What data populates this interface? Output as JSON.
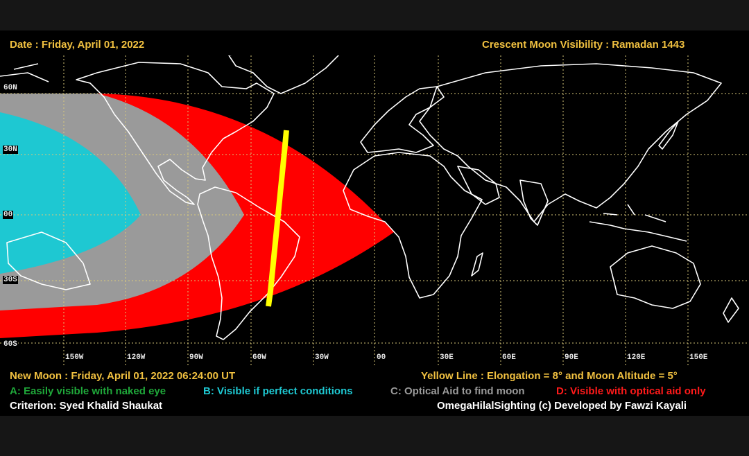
{
  "header": {
    "date": "Date : Friday, April 01, 2022",
    "title": "Crescent Moon Visibility : Ramadan  1443"
  },
  "map": {
    "lat_labels": [
      "60N",
      "30N",
      "00",
      "30S",
      "60S"
    ],
    "lon_labels": [
      "150W",
      "120W",
      "90W",
      "60W",
      "30W",
      "00",
      "30E",
      "60E",
      "90E",
      "120E",
      "150E"
    ],
    "colors": {
      "naked_eye": "#1ec8d2",
      "perfect_conditions": "#9a9a9a",
      "optical_aid_find": "#9a9a9a",
      "optical_aid_only": "#ff0000",
      "yellow_line": "#ffff00",
      "grid": "#d9c97a",
      "coastline": "#ffffff"
    }
  },
  "footer": {
    "new_moon": "New Moon : Friday, April 01, 2022  06:24:00  UT",
    "yellow_line": "Yellow Line : Elongation = 8°  and Moon Altitude = 5°",
    "legend": {
      "a": "A: Easily visible with naked eye",
      "b": "B: Visible if perfect conditions",
      "c": "C: Optical Aid to find moon",
      "d": "D: Visible with optical aid only"
    },
    "criterion": "Criterion: Syed Khalid Shaukat",
    "credit": "OmegaHilalSighting  (c)  Developed by Fawzi Kayali"
  }
}
